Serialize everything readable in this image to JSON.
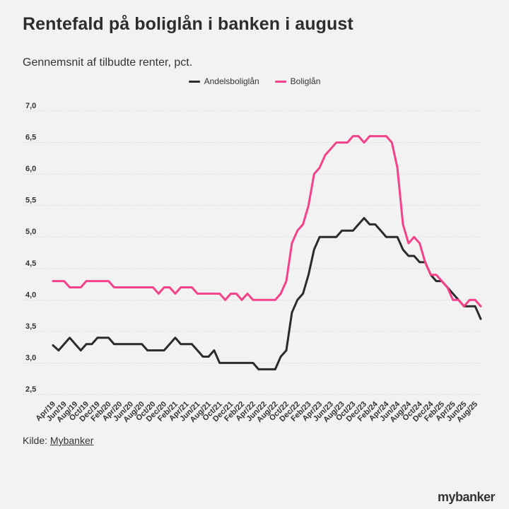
{
  "title": "Rentefald på boliglån i banken i august",
  "subtitle": "Gennemsnit af tilbudte renter, pct.",
  "source": {
    "label": "Kilde:",
    "link": "Mybanker"
  },
  "logo": "mybanker",
  "chart_data": {
    "type": "line",
    "ylim": [
      2.5,
      7.0
    ],
    "yticks": [
      "2,5",
      "3,0",
      "3,5",
      "4,0",
      "4,5",
      "5,0",
      "5,5",
      "6,0",
      "6,5",
      "7,0"
    ],
    "grid": true,
    "legend_position": "top-center",
    "x_tick_labels": [
      "Apr/19",
      "Jun/19",
      "Aug/19",
      "Oct/19",
      "Dec/19",
      "Feb/20",
      "Apr/20",
      "Jun/20",
      "Aug/20",
      "Oct/20",
      "Dec/20",
      "Feb/21",
      "Apr/21",
      "Jun/21",
      "Aug/21",
      "Oct/21",
      "Dec/21",
      "Feb/22",
      "Apr/22",
      "Jun/22",
      "Aug/22",
      "Oct/22",
      "Dec/22",
      "Feb/23",
      "Apr/23",
      "Jun/23",
      "Aug/23",
      "Oct/23",
      "Dec/23",
      "Feb/24",
      "Apr/24",
      "Jun/24",
      "Aug/24",
      "Oct/24",
      "Dec/24",
      "Feb/25",
      "Apr/25",
      "Jun/25",
      "Aug/25"
    ],
    "series": [
      {
        "name": "Andelsboliglån",
        "color": "#2b2b2b",
        "values": [
          3.28,
          3.2,
          3.3,
          3.4,
          3.3,
          3.2,
          3.3,
          3.3,
          3.4,
          3.4,
          3.4,
          3.3,
          3.3,
          3.3,
          3.3,
          3.3,
          3.3,
          3.2,
          3.2,
          3.2,
          3.2,
          3.3,
          3.4,
          3.3,
          3.3,
          3.3,
          3.2,
          3.1,
          3.1,
          3.2,
          3.0,
          3.0,
          3.0,
          3.0,
          3.0,
          3.0,
          3.0,
          2.9,
          2.9,
          2.9,
          2.9,
          3.1,
          3.2,
          3.8,
          4.0,
          4.1,
          4.4,
          4.8,
          5.0,
          5.0,
          5.0,
          5.0,
          5.1,
          5.1,
          5.1,
          5.2,
          5.3,
          5.2,
          5.2,
          5.1,
          5.0,
          5.0,
          5.0,
          4.8,
          4.7,
          4.7,
          4.6,
          4.6,
          4.4,
          4.3,
          4.3,
          4.2,
          4.1,
          4.0,
          3.9,
          3.9,
          3.9,
          3.7
        ]
      },
      {
        "name": "Boliglån",
        "color": "#f4418a",
        "values": [
          4.3,
          4.3,
          4.3,
          4.2,
          4.2,
          4.2,
          4.3,
          4.3,
          4.3,
          4.3,
          4.3,
          4.2,
          4.2,
          4.2,
          4.2,
          4.2,
          4.2,
          4.2,
          4.2,
          4.1,
          4.2,
          4.2,
          4.1,
          4.2,
          4.2,
          4.2,
          4.1,
          4.1,
          4.1,
          4.1,
          4.1,
          4.0,
          4.1,
          4.1,
          4.0,
          4.1,
          4.0,
          4.0,
          4.0,
          4.0,
          4.0,
          4.1,
          4.3,
          4.9,
          5.1,
          5.2,
          5.5,
          6.0,
          6.1,
          6.3,
          6.4,
          6.5,
          6.5,
          6.5,
          6.6,
          6.6,
          6.5,
          6.6,
          6.6,
          6.6,
          6.6,
          6.5,
          6.1,
          5.2,
          4.9,
          5.0,
          4.9,
          4.6,
          4.4,
          4.4,
          4.3,
          4.2,
          4.0,
          4.0,
          3.9,
          4.0,
          4.0,
          3.9
        ]
      }
    ]
  }
}
